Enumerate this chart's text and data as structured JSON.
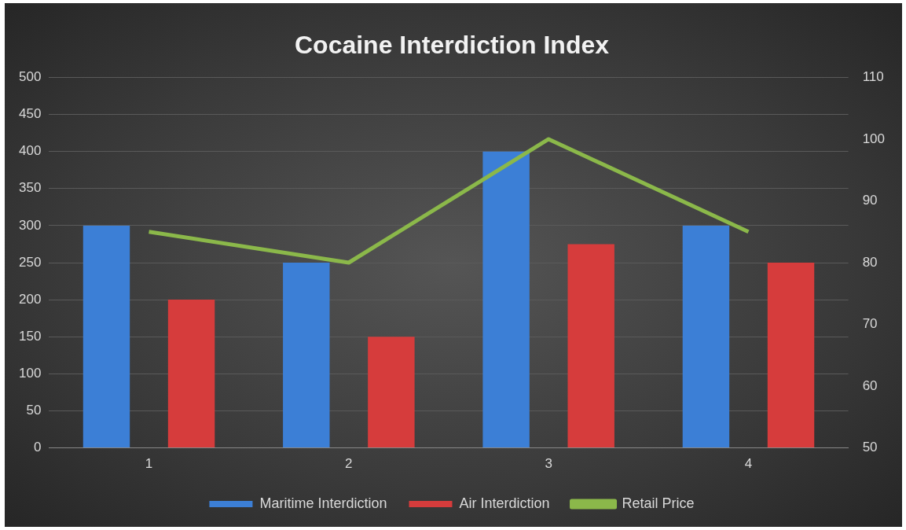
{
  "chart_data": {
    "type": "bar",
    "title": "Cocaine Interdiction Index",
    "categories": [
      "1",
      "2",
      "3",
      "4"
    ],
    "series": [
      {
        "name": "Maritime Interdiction",
        "color": "#3c7fd6",
        "values": [
          300,
          250,
          400,
          300
        ]
      },
      {
        "name": "Air Interdiction",
        "color": "#d63c3c",
        "values": [
          200,
          150,
          275,
          250
        ]
      },
      {
        "name": "Retail Price",
        "type": "line",
        "axis": "y2",
        "color": "#8bb84a",
        "values": [
          85,
          80,
          100,
          85
        ]
      }
    ],
    "ylim": [
      0,
      500
    ],
    "yticks": [
      0,
      50,
      100,
      150,
      200,
      250,
      300,
      350,
      400,
      450,
      500
    ],
    "y2lim": [
      50,
      110
    ],
    "y2ticks": [
      50,
      60,
      70,
      80,
      90,
      100,
      110
    ],
    "grid": "y",
    "legend": "bottom",
    "marker": "none"
  }
}
